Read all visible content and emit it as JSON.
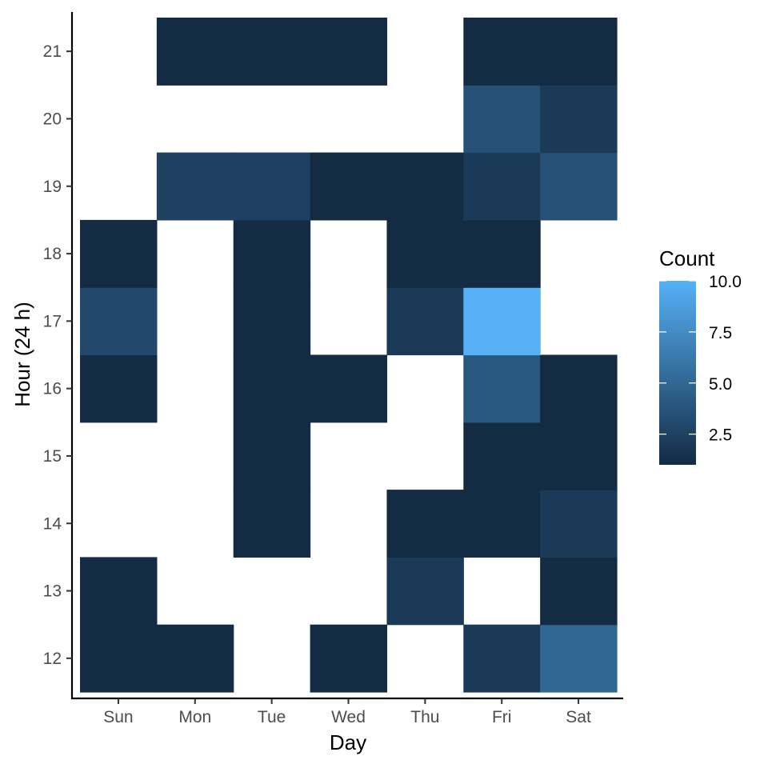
{
  "chart_data": {
    "type": "heatmap",
    "title": "",
    "xlabel": "Day",
    "ylabel": "Hour (24 h)",
    "x_categories": [
      "Sun",
      "Mon",
      "Tue",
      "Wed",
      "Thu",
      "Fri",
      "Sat"
    ],
    "y_categories": [
      "12",
      "13",
      "14",
      "15",
      "16",
      "17",
      "18",
      "19",
      "20",
      "21"
    ],
    "cells": [
      {
        "x": "Sun",
        "y": "12",
        "value": 1
      },
      {
        "x": "Mon",
        "y": "12",
        "value": 1
      },
      {
        "x": "Wed",
        "y": "12",
        "value": 1
      },
      {
        "x": "Fri",
        "y": "12",
        "value": 2
      },
      {
        "x": "Sat",
        "y": "12",
        "value": 5
      },
      {
        "x": "Sun",
        "y": "13",
        "value": 1
      },
      {
        "x": "Thu",
        "y": "13",
        "value": 2
      },
      {
        "x": "Sat",
        "y": "13",
        "value": 1
      },
      {
        "x": "Tue",
        "y": "14",
        "value": 1
      },
      {
        "x": "Thu",
        "y": "14",
        "value": 1
      },
      {
        "x": "Fri",
        "y": "14",
        "value": 1
      },
      {
        "x": "Sat",
        "y": "14",
        "value": 2
      },
      {
        "x": "Tue",
        "y": "15",
        "value": 1
      },
      {
        "x": "Fri",
        "y": "15",
        "value": 1
      },
      {
        "x": "Sat",
        "y": "15",
        "value": 1
      },
      {
        "x": "Sun",
        "y": "16",
        "value": 1
      },
      {
        "x": "Tue",
        "y": "16",
        "value": 1
      },
      {
        "x": "Wed",
        "y": "16",
        "value": 1
      },
      {
        "x": "Fri",
        "y": "16",
        "value": 4
      },
      {
        "x": "Sat",
        "y": "16",
        "value": 1
      },
      {
        "x": "Sun",
        "y": "17",
        "value": 3
      },
      {
        "x": "Tue",
        "y": "17",
        "value": 1
      },
      {
        "x": "Thu",
        "y": "17",
        "value": 2
      },
      {
        "x": "Fri",
        "y": "17",
        "value": 10
      },
      {
        "x": "Sun",
        "y": "18",
        "value": 1
      },
      {
        "x": "Tue",
        "y": "18",
        "value": 1
      },
      {
        "x": "Thu",
        "y": "18",
        "value": 1
      },
      {
        "x": "Fri",
        "y": "18",
        "value": 1
      },
      {
        "x": "Mon",
        "y": "19",
        "value": 2.5
      },
      {
        "x": "Tue",
        "y": "19",
        "value": 2.5
      },
      {
        "x": "Wed",
        "y": "19",
        "value": 1
      },
      {
        "x": "Thu",
        "y": "19",
        "value": 1
      },
      {
        "x": "Fri",
        "y": "19",
        "value": 2
      },
      {
        "x": "Sat",
        "y": "19",
        "value": 3.5
      },
      {
        "x": "Fri",
        "y": "20",
        "value": 3.5
      },
      {
        "x": "Sat",
        "y": "20",
        "value": 2
      },
      {
        "x": "Mon",
        "y": "21",
        "value": 1
      },
      {
        "x": "Tue",
        "y": "21",
        "value": 1
      },
      {
        "x": "Wed",
        "y": "21",
        "value": 1
      },
      {
        "x": "Fri",
        "y": "21",
        "value": 1
      },
      {
        "x": "Sat",
        "y": "21",
        "value": 1
      }
    ],
    "color_scale": {
      "low_color": "#132B43",
      "high_color": "#56B1F7",
      "min": 1,
      "max": 10
    },
    "legend": {
      "title": "Count",
      "placement": "right",
      "breaks": [
        2.5,
        5.0,
        7.5,
        10.0
      ],
      "break_labels": [
        "2.5",
        "5.0",
        "7.5",
        "10.0"
      ]
    },
    "grid": false
  }
}
